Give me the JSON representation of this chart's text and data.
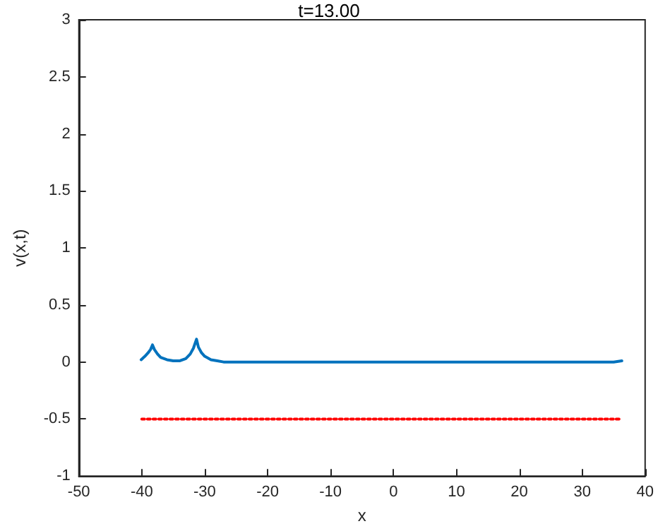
{
  "chart_data": {
    "type": "line",
    "title": "t=13.00",
    "xlabel": "x",
    "ylabel": "v(x,t)",
    "xlim": [
      -50,
      40
    ],
    "xticks": [
      -50,
      -40,
      -30,
      -20,
      -10,
      0,
      10,
      20,
      30,
      40
    ],
    "ylim": [
      -1,
      3
    ],
    "yticks": [
      -1,
      -0.5,
      0,
      0.5,
      1,
      1.5,
      2,
      2.5,
      3
    ],
    "grid": false,
    "marker": "none",
    "series": [
      {
        "color": "#0072bd",
        "line_style": "solid",
        "x": [
          -40.1,
          -39.5,
          -39,
          -38.6,
          -38.3,
          -38,
          -37.5,
          -37,
          -36,
          -35,
          -34,
          -33,
          -32.3,
          -31.8,
          -31.3,
          -31,
          -30.5,
          -30,
          -29,
          -28,
          -27,
          -25,
          0,
          30,
          35,
          36.3
        ],
        "values": [
          0.02,
          0.05,
          0.08,
          0.11,
          0.15,
          0.11,
          0.07,
          0.04,
          0.02,
          0.01,
          0.01,
          0.03,
          0.07,
          0.12,
          0.2,
          0.13,
          0.08,
          0.05,
          0.02,
          0.01,
          0,
          0,
          0,
          0,
          0,
          0.01
        ]
      },
      {
        "color": "#ff0000",
        "line_style": "dotted",
        "x": [
          -40,
          36
        ],
        "values": [
          -0.5,
          -0.5
        ]
      }
    ]
  }
}
